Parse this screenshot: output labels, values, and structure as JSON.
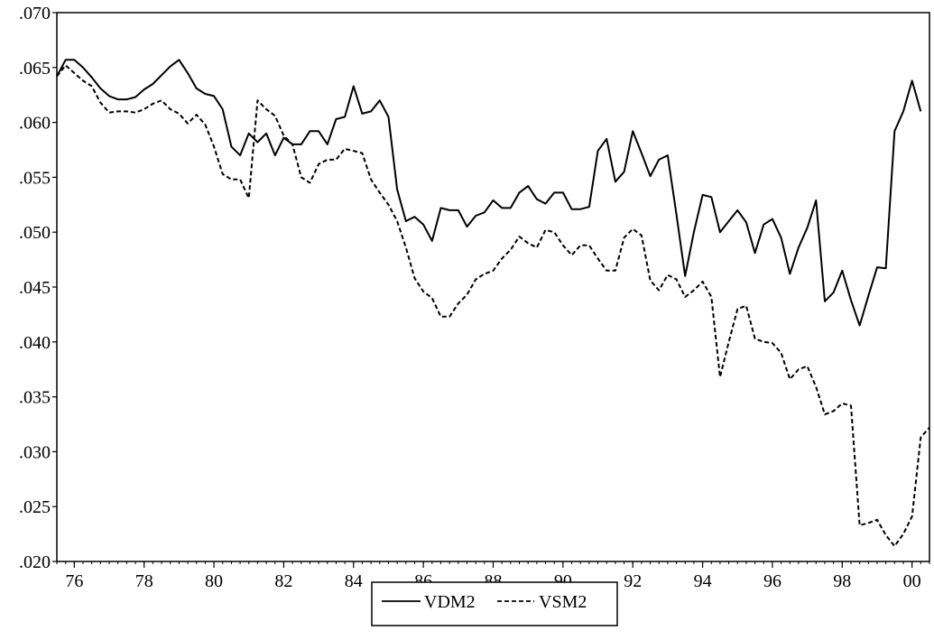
{
  "chart_data": {
    "type": "line",
    "x_range": [
      1975.5,
      2000.5
    ],
    "y_range": [
      0.02,
      0.07
    ],
    "ylim": [
      0.02,
      0.07
    ],
    "y_ticks": [
      ".020",
      ".025",
      ".030",
      ".035",
      ".040",
      ".045",
      ".050",
      ".055",
      ".060",
      ".065",
      ".070"
    ],
    "y_tick_values": [
      0.02,
      0.025,
      0.03,
      0.035,
      0.04,
      0.045,
      0.05,
      0.055,
      0.06,
      0.065,
      0.07
    ],
    "x_ticks": [
      "76",
      "78",
      "80",
      "82",
      "84",
      "86",
      "88",
      "90",
      "92",
      "94",
      "96",
      "98",
      "00"
    ],
    "x_tick_values": [
      1976,
      1978,
      1980,
      1982,
      1984,
      1986,
      1988,
      1990,
      1992,
      1994,
      1996,
      1998,
      2000
    ],
    "grid": false,
    "legend_position": "bottom-center",
    "series": [
      {
        "name": "VDM2",
        "style": "solid",
        "color": "#000000",
        "points": [
          [
            1975.5,
            0.0642
          ],
          [
            1975.75,
            0.0657
          ],
          [
            1976.0,
            0.0657
          ],
          [
            1976.25,
            0.065
          ],
          [
            1976.5,
            0.0641
          ],
          [
            1976.75,
            0.0631
          ],
          [
            1977.0,
            0.0624
          ],
          [
            1977.25,
            0.0621
          ],
          [
            1977.5,
            0.0621
          ],
          [
            1977.75,
            0.0623
          ],
          [
            1978.0,
            0.063
          ],
          [
            1978.25,
            0.0635
          ],
          [
            1978.5,
            0.0643
          ],
          [
            1978.75,
            0.0651
          ],
          [
            1979.0,
            0.0657
          ],
          [
            1979.25,
            0.0645
          ],
          [
            1979.5,
            0.0631
          ],
          [
            1979.75,
            0.0626
          ],
          [
            1980.0,
            0.0624
          ],
          [
            1980.25,
            0.0612
          ],
          [
            1980.5,
            0.0578
          ],
          [
            1980.75,
            0.057
          ],
          [
            1981.0,
            0.059
          ],
          [
            1981.25,
            0.0582
          ],
          [
            1981.5,
            0.059
          ],
          [
            1981.75,
            0.057
          ],
          [
            1982.0,
            0.0586
          ],
          [
            1982.25,
            0.058
          ],
          [
            1982.5,
            0.058
          ],
          [
            1982.75,
            0.0592
          ],
          [
            1983.0,
            0.0592
          ],
          [
            1983.25,
            0.058
          ],
          [
            1983.5,
            0.0603
          ],
          [
            1983.75,
            0.0605
          ],
          [
            1984.0,
            0.0633
          ],
          [
            1984.25,
            0.0608
          ],
          [
            1984.5,
            0.061
          ],
          [
            1984.75,
            0.062
          ],
          [
            1985.0,
            0.0605
          ],
          [
            1985.25,
            0.0539
          ],
          [
            1985.5,
            0.051
          ],
          [
            1985.75,
            0.0514
          ],
          [
            1986.0,
            0.0507
          ],
          [
            1986.25,
            0.0492
          ],
          [
            1986.5,
            0.0522
          ],
          [
            1986.75,
            0.052
          ],
          [
            1987.0,
            0.052
          ],
          [
            1987.25,
            0.0505
          ],
          [
            1987.5,
            0.0515
          ],
          [
            1987.75,
            0.0518
          ],
          [
            1988.0,
            0.0529
          ],
          [
            1988.25,
            0.0522
          ],
          [
            1988.5,
            0.0522
          ],
          [
            1988.75,
            0.0536
          ],
          [
            1989.0,
            0.0542
          ],
          [
            1989.25,
            0.053
          ],
          [
            1989.5,
            0.0526
          ],
          [
            1989.75,
            0.0536
          ],
          [
            1990.0,
            0.0536
          ],
          [
            1990.25,
            0.0521
          ],
          [
            1990.5,
            0.0521
          ],
          [
            1990.75,
            0.0523
          ],
          [
            1991.0,
            0.0574
          ],
          [
            1991.25,
            0.0585
          ],
          [
            1991.5,
            0.0546
          ],
          [
            1991.75,
            0.0555
          ],
          [
            1992.0,
            0.0592
          ],
          [
            1992.25,
            0.0572
          ],
          [
            1992.5,
            0.0551
          ],
          [
            1992.75,
            0.0566
          ],
          [
            1993.0,
            0.057
          ],
          [
            1993.25,
            0.0516
          ],
          [
            1993.5,
            0.046
          ],
          [
            1993.75,
            0.05
          ],
          [
            1994.0,
            0.0534
          ],
          [
            1994.25,
            0.0532
          ],
          [
            1994.5,
            0.05
          ],
          [
            1994.75,
            0.051
          ],
          [
            1995.0,
            0.052
          ],
          [
            1995.25,
            0.0509
          ],
          [
            1995.5,
            0.0481
          ],
          [
            1995.75,
            0.0507
          ],
          [
            1996.0,
            0.0512
          ],
          [
            1996.25,
            0.0495
          ],
          [
            1996.5,
            0.0462
          ],
          [
            1996.75,
            0.0486
          ],
          [
            1997.0,
            0.0504
          ],
          [
            1997.25,
            0.0529
          ],
          [
            1997.5,
            0.0437
          ],
          [
            1997.75,
            0.0445
          ],
          [
            1998.0,
            0.0465
          ],
          [
            1998.25,
            0.0438
          ],
          [
            1998.5,
            0.0415
          ],
          [
            1998.75,
            0.0442
          ],
          [
            1999.0,
            0.0468
          ],
          [
            1999.25,
            0.0467
          ],
          [
            1999.5,
            0.0592
          ],
          [
            1999.75,
            0.061
          ],
          [
            2000.0,
            0.0638
          ],
          [
            2000.25,
            0.061
          ]
        ]
      },
      {
        "name": "VSM2",
        "style": "dashed",
        "color": "#000000",
        "points": [
          [
            1975.5,
            0.0642
          ],
          [
            1975.75,
            0.0652
          ],
          [
            1976.0,
            0.0645
          ],
          [
            1976.25,
            0.0638
          ],
          [
            1976.5,
            0.0633
          ],
          [
            1976.75,
            0.0618
          ],
          [
            1977.0,
            0.0609
          ],
          [
            1977.25,
            0.061
          ],
          [
            1977.5,
            0.061
          ],
          [
            1977.75,
            0.0609
          ],
          [
            1978.0,
            0.0612
          ],
          [
            1978.25,
            0.0617
          ],
          [
            1978.5,
            0.062
          ],
          [
            1978.75,
            0.0612
          ],
          [
            1979.0,
            0.0608
          ],
          [
            1979.25,
            0.0599
          ],
          [
            1979.5,
            0.0607
          ],
          [
            1979.75,
            0.0598
          ],
          [
            1980.0,
            0.0578
          ],
          [
            1980.25,
            0.0553
          ],
          [
            1980.5,
            0.0548
          ],
          [
            1980.75,
            0.0548
          ],
          [
            1981.0,
            0.0531
          ],
          [
            1981.25,
            0.062
          ],
          [
            1981.5,
            0.0612
          ],
          [
            1981.75,
            0.0606
          ],
          [
            1982.0,
            0.0588
          ],
          [
            1982.25,
            0.058
          ],
          [
            1982.5,
            0.055
          ],
          [
            1982.75,
            0.0545
          ],
          [
            1983.0,
            0.0562
          ],
          [
            1983.25,
            0.0566
          ],
          [
            1983.5,
            0.0566
          ],
          [
            1983.75,
            0.0576
          ],
          [
            1984.0,
            0.0574
          ],
          [
            1984.25,
            0.0572
          ],
          [
            1984.5,
            0.0548
          ],
          [
            1984.75,
            0.0536
          ],
          [
            1985.0,
            0.0525
          ],
          [
            1985.25,
            0.051
          ],
          [
            1985.5,
            0.0486
          ],
          [
            1985.75,
            0.0458
          ],
          [
            1986.0,
            0.0446
          ],
          [
            1986.25,
            0.044
          ],
          [
            1986.5,
            0.0423
          ],
          [
            1986.75,
            0.0423
          ],
          [
            1987.0,
            0.0435
          ],
          [
            1987.25,
            0.0443
          ],
          [
            1987.5,
            0.0457
          ],
          [
            1987.75,
            0.0462
          ],
          [
            1988.0,
            0.0465
          ],
          [
            1988.25,
            0.0476
          ],
          [
            1988.5,
            0.0484
          ],
          [
            1988.75,
            0.0496
          ],
          [
            1989.0,
            0.049
          ],
          [
            1989.25,
            0.0486
          ],
          [
            1989.5,
            0.0502
          ],
          [
            1989.75,
            0.05
          ],
          [
            1990.0,
            0.0488
          ],
          [
            1990.25,
            0.0479
          ],
          [
            1990.5,
            0.0488
          ],
          [
            1990.75,
            0.0488
          ],
          [
            1991.0,
            0.0476
          ],
          [
            1991.25,
            0.0465
          ],
          [
            1991.5,
            0.0465
          ],
          [
            1991.75,
            0.0495
          ],
          [
            1992.0,
            0.0503
          ],
          [
            1992.25,
            0.0497
          ],
          [
            1992.5,
            0.0456
          ],
          [
            1992.75,
            0.0447
          ],
          [
            1993.0,
            0.0461
          ],
          [
            1993.25,
            0.0457
          ],
          [
            1993.5,
            0.0441
          ],
          [
            1993.75,
            0.0447
          ],
          [
            1994.0,
            0.0455
          ],
          [
            1994.25,
            0.0441
          ],
          [
            1994.5,
            0.0368
          ],
          [
            1994.75,
            0.04
          ],
          [
            1995.0,
            0.043
          ],
          [
            1995.25,
            0.0433
          ],
          [
            1995.5,
            0.0403
          ],
          [
            1995.75,
            0.04
          ],
          [
            1996.0,
            0.0399
          ],
          [
            1996.25,
            0.039
          ],
          [
            1996.5,
            0.0366
          ],
          [
            1996.75,
            0.0375
          ],
          [
            1997.0,
            0.0378
          ],
          [
            1997.25,
            0.0359
          ],
          [
            1997.5,
            0.0334
          ],
          [
            1997.75,
            0.0337
          ],
          [
            1998.0,
            0.0344
          ],
          [
            1998.25,
            0.0342
          ],
          [
            1998.5,
            0.0233
          ],
          [
            1998.75,
            0.0235
          ],
          [
            1999.0,
            0.0238
          ],
          [
            1999.25,
            0.0224
          ],
          [
            1999.5,
            0.0214
          ],
          [
            1999.75,
            0.0225
          ],
          [
            2000.0,
            0.0241
          ],
          [
            2000.25,
            0.0313
          ],
          [
            2000.5,
            0.0322
          ]
        ]
      }
    ],
    "legend": {
      "entries": [
        {
          "label": "VDM2",
          "style": "solid"
        },
        {
          "label": "VSM2",
          "style": "dashed"
        }
      ]
    }
  }
}
